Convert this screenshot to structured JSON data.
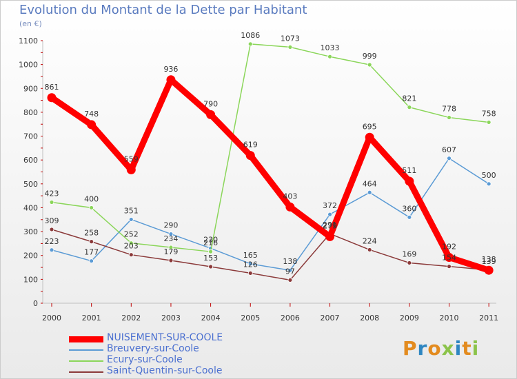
{
  "header": {
    "title": "Evolution du Montant de la Dette par Habitant",
    "unit": "(en €)"
  },
  "logo": {
    "text": "Proxiti",
    "letters": [
      "P",
      "r",
      "o",
      "x",
      "i",
      "t",
      "i"
    ],
    "colors": [
      "#e38b1f",
      "#2e86c1",
      "#e38b1f",
      "#8bc34a",
      "#2e86c1",
      "#e38b1f",
      "#8bc34a"
    ]
  },
  "chart_data": {
    "type": "line",
    "categories": [
      "2000",
      "2001",
      "2002",
      "2003",
      "2004",
      "2005",
      "2006",
      "2007",
      "2008",
      "2009",
      "2010",
      "2011"
    ],
    "ylim": [
      0,
      1100
    ],
    "yticks": [
      0,
      100,
      200,
      300,
      400,
      500,
      600,
      700,
      800,
      900,
      1000,
      1100
    ],
    "grid": false,
    "legend_position": "bottom-left",
    "series": [
      {
        "name": "NUISEMENT-SUR-COOLE",
        "color": "#ff0000",
        "values": [
          861,
          748,
          559,
          936,
          790,
          619,
          403,
          279,
          695,
          511,
          192,
          138
        ]
      },
      {
        "name": "Breuvery-sur-Coole",
        "color": "#5b9bd5",
        "values": [
          223,
          177,
          351,
          290,
          230,
          165,
          138,
          372,
          464,
          360,
          607,
          500
        ]
      },
      {
        "name": "Ecury-sur-Coole",
        "color": "#8bd65a",
        "values": [
          423,
          400,
          252,
          234,
          216,
          1086,
          1073,
          1033,
          999,
          821,
          778,
          758
        ]
      },
      {
        "name": "Saint-Quentin-sur-Coole",
        "color": "#8b3a3a",
        "values": [
          309,
          258,
          203,
          179,
          153,
          126,
          97,
          291,
          224,
          169,
          154,
          139
        ]
      }
    ]
  }
}
